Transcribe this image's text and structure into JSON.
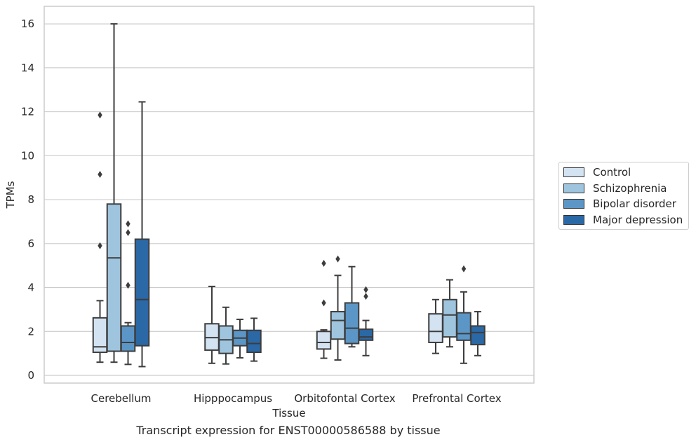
{
  "chart_data": {
    "type": "box",
    "xlabel": "Tissue",
    "ylabel": "TPMs",
    "ylim": [
      -0.35,
      16.8
    ],
    "yticks": [
      0,
      2,
      4,
      6,
      8,
      10,
      12,
      14,
      16
    ],
    "grid": true,
    "legend_position": "right",
    "categories": [
      "Cerebellum",
      "Hipppocampus",
      "Orbitofontal Cortex",
      "Prefrontal Cortex"
    ],
    "series": [
      {
        "name": "Control",
        "color": "#d4e3f2",
        "boxes": [
          {
            "whislo": 0.6,
            "q1": 1.05,
            "med": 1.3,
            "q3": 2.62,
            "whishi": 3.4,
            "fliers": [
              5.9,
              9.15,
              11.85
            ]
          },
          {
            "whislo": 0.55,
            "q1": 1.15,
            "med": 1.72,
            "q3": 2.35,
            "whishi": 4.05,
            "fliers": []
          },
          {
            "whislo": 0.78,
            "q1": 1.2,
            "med": 1.5,
            "q3": 2.0,
            "whishi": 2.07,
            "fliers": [
              3.3,
              5.1
            ]
          },
          {
            "whislo": 1.0,
            "q1": 1.5,
            "med": 2.0,
            "q3": 2.8,
            "whishi": 3.45,
            "fliers": []
          }
        ]
      },
      {
        "name": "Schizophrenia",
        "color": "#9fc4de",
        "boxes": [
          {
            "whislo": 0.6,
            "q1": 1.1,
            "med": 5.35,
            "q3": 7.8,
            "whishi": 16.0,
            "fliers": []
          },
          {
            "whislo": 0.52,
            "q1": 1.0,
            "med": 1.62,
            "q3": 2.25,
            "whishi": 3.1,
            "fliers": []
          },
          {
            "whislo": 0.7,
            "q1": 1.65,
            "med": 2.5,
            "q3": 2.9,
            "whishi": 4.55,
            "fliers": [
              5.3
            ]
          },
          {
            "whislo": 1.3,
            "q1": 1.75,
            "med": 2.75,
            "q3": 3.45,
            "whishi": 4.35,
            "fliers": []
          }
        ]
      },
      {
        "name": "Bipolar disorder",
        "color": "#5b96c6",
        "boxes": [
          {
            "whislo": 0.5,
            "q1": 1.1,
            "med": 1.5,
            "q3": 2.25,
            "whishi": 2.4,
            "fliers": [
              4.1,
              6.5,
              6.9
            ]
          },
          {
            "whislo": 0.8,
            "q1": 1.35,
            "med": 1.7,
            "q3": 2.05,
            "whishi": 2.55,
            "fliers": []
          },
          {
            "whislo": 1.3,
            "q1": 1.45,
            "med": 2.15,
            "q3": 3.3,
            "whishi": 4.95,
            "fliers": []
          },
          {
            "whislo": 0.55,
            "q1": 1.6,
            "med": 1.9,
            "q3": 2.85,
            "whishi": 3.8,
            "fliers": [
              4.85
            ]
          }
        ]
      },
      {
        "name": "Major depression",
        "color": "#2b68a6",
        "boxes": [
          {
            "whislo": 0.4,
            "q1": 1.35,
            "med": 3.45,
            "q3": 6.2,
            "whishi": 12.45,
            "fliers": []
          },
          {
            "whislo": 0.65,
            "q1": 1.05,
            "med": 1.45,
            "q3": 2.05,
            "whishi": 2.6,
            "fliers": []
          },
          {
            "whislo": 0.9,
            "q1": 1.6,
            "med": 1.75,
            "q3": 2.1,
            "whishi": 2.5,
            "fliers": [
              3.6,
              3.9
            ]
          },
          {
            "whislo": 0.9,
            "q1": 1.4,
            "med": 1.95,
            "q3": 2.25,
            "whishi": 2.9,
            "fliers": []
          }
        ]
      }
    ]
  },
  "caption": "Transcript expression for ENST00000586588 by tissue"
}
